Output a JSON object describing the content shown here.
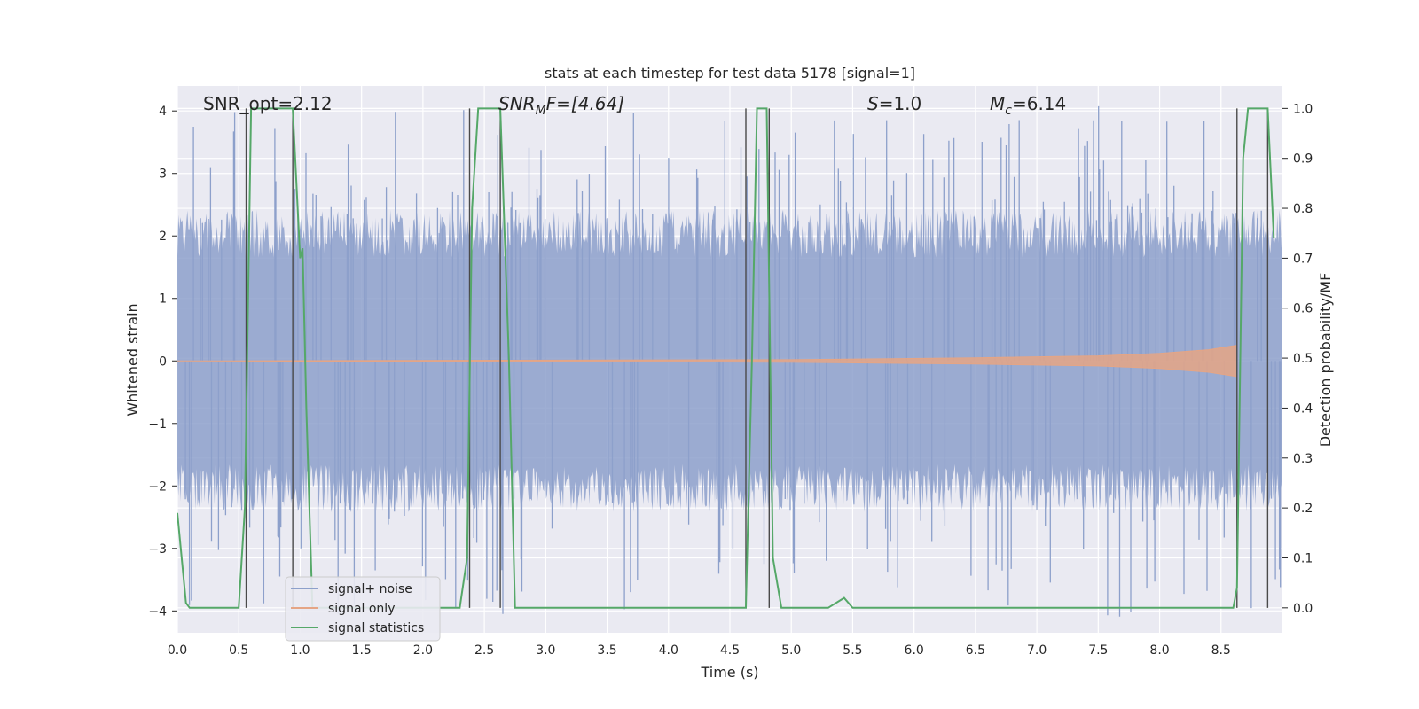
{
  "chart_data": {
    "type": "line",
    "title": "stats at each timestep for test data 5178 [signal=1]",
    "xlabel": "Time (s)",
    "ylabel": "Whitened strain",
    "y2label": "Detection probability/MF",
    "xlim": [
      0.0,
      9.0
    ],
    "ylim": [
      -4.35,
      4.4
    ],
    "y2lim": [
      -0.05,
      1.045
    ],
    "xticks": [
      "0.0",
      "0.5",
      "1.0",
      "1.5",
      "2.0",
      "2.5",
      "3.0",
      "3.5",
      "4.0",
      "4.5",
      "5.0",
      "5.5",
      "6.0",
      "6.5",
      "7.0",
      "7.5",
      "8.0",
      "8.5"
    ],
    "yticks": [
      "4",
      "3",
      "2",
      "1",
      "0",
      "−1",
      "−2",
      "−3",
      "−4"
    ],
    "y2ticks": [
      "1.0",
      "0.9",
      "0.8",
      "0.7",
      "0.6",
      "0.5",
      "0.4",
      "0.3",
      "0.2",
      "0.1",
      "0.0"
    ],
    "grid": true,
    "legend_position": "lower-left",
    "annotations": {
      "snr_opt": "SNR_opt=2.12",
      "snr_mf_base": "SNR",
      "snr_mf_sub": "M",
      "snr_mf_rest": "F=[4.64]",
      "s_base": "S",
      "s_rest": "=1.0",
      "mc_base": "M",
      "mc_sub": "c",
      "mc_rest": "=6.14"
    },
    "series": [
      {
        "name": "signal+ noise",
        "color": "#8da0cb",
        "amplitude_envelope": {
          "x": [
            0.0,
            9.0
          ],
          "typical_abs_max": [
            2.2,
            2.2
          ],
          "peak_abs_max": 4.1
        }
      },
      {
        "name": "signal only",
        "color": "#e5a585",
        "envelope": {
          "x": [
            0.0,
            5.0,
            6.5,
            7.5,
            8.0,
            8.4,
            8.63
          ],
          "y": [
            0.0,
            0.02,
            0.05,
            0.08,
            0.12,
            0.18,
            0.25
          ]
        }
      },
      {
        "name": "signal statistics",
        "color": "#55a868",
        "axis": "y2",
        "x": [
          0.0,
          0.07,
          0.1,
          0.2,
          0.5,
          0.55,
          0.6,
          0.65,
          0.7,
          0.8,
          0.9,
          0.94,
          1.0,
          1.02,
          1.05,
          1.1,
          2.3,
          2.36,
          2.4,
          2.45,
          2.6,
          2.63,
          2.7,
          2.75,
          4.6,
          4.63,
          4.68,
          4.72,
          4.8,
          4.85,
          4.92,
          4.95,
          5.3,
          5.43,
          5.5,
          5.6,
          8.55,
          8.6,
          8.63,
          8.68,
          8.72,
          8.8,
          8.88,
          8.93
        ],
        "y": [
          0.19,
          0.01,
          0.0,
          0.0,
          0.0,
          0.2,
          1.0,
          1.0,
          1.0,
          1.0,
          1.0,
          1.0,
          0.7,
          0.72,
          0.4,
          0.0,
          0.0,
          0.1,
          0.8,
          1.0,
          1.0,
          1.0,
          0.5,
          0.0,
          0.0,
          0.0,
          0.5,
          1.0,
          1.0,
          0.1,
          0.0,
          0.0,
          0.0,
          0.02,
          0.0,
          0.0,
          0.0,
          0.0,
          0.04,
          0.9,
          1.0,
          1.0,
          1.0,
          0.74
        ]
      }
    ],
    "vertical_markers": [
      0.56,
      0.94,
      2.38,
      2.63,
      4.63,
      4.82,
      8.63,
      8.88
    ]
  },
  "legend": {
    "items": [
      "signal+ noise",
      "signal only",
      "signal statistics"
    ]
  }
}
